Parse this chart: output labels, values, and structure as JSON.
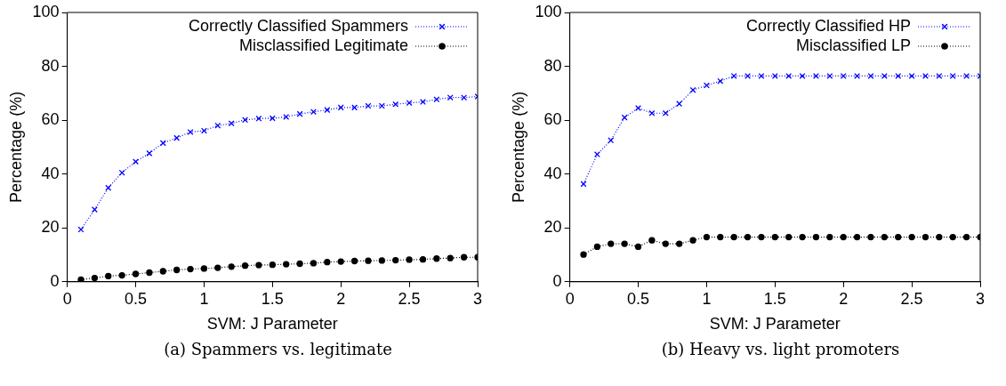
{
  "chart_data": [
    {
      "type": "line",
      "xlabel": "SVM: J Parameter",
      "ylabel": "Percentage (%)",
      "annotations": [
        "(a) Spammers vs. legitimate"
      ],
      "x": [
        0.1,
        0.2,
        0.3,
        0.4,
        0.5,
        0.6,
        0.7,
        0.8,
        0.9,
        1.0,
        1.1,
        1.2,
        1.3,
        1.4,
        1.5,
        1.6,
        1.7,
        1.8,
        1.9,
        2.0,
        2.1,
        2.2,
        2.3,
        2.4,
        2.5,
        2.6,
        2.7,
        2.8,
        2.9,
        3.0
      ],
      "xlim": [
        0,
        3
      ],
      "xticks": [
        0,
        0.5,
        1,
        1.5,
        2,
        2.5,
        3
      ],
      "ylim": [
        0,
        100
      ],
      "yticks": [
        0,
        20,
        40,
        60,
        80,
        100
      ],
      "grid": false,
      "legend": "top right",
      "line_style": "dotted",
      "series": [
        {
          "name": "Correctly Classified Spammers",
          "color": "#0000ff",
          "marker": "cross",
          "values": [
            19.4,
            26.8,
            34.9,
            40.5,
            44.6,
            47.7,
            51.5,
            53.4,
            55.6,
            56.1,
            58.0,
            58.8,
            60.1,
            60.6,
            60.7,
            61.2,
            62.3,
            63.1,
            63.8,
            64.7,
            64.7,
            65.3,
            65.3,
            65.9,
            66.4,
            66.8,
            67.7,
            68.4,
            68.4,
            68.8
          ]
        },
        {
          "name": "Misclassified Legitimate",
          "color": "#000000",
          "marker": "circle",
          "values": [
            0.8,
            1.4,
            2.1,
            2.4,
            2.9,
            3.4,
            3.9,
            4.4,
            4.7,
            4.9,
            5.2,
            5.6,
            6.0,
            6.2,
            6.3,
            6.5,
            6.7,
            6.9,
            7.3,
            7.5,
            7.7,
            7.8,
            7.9,
            8.0,
            8.2,
            8.3,
            8.6,
            8.8,
            9.1,
            9.1
          ]
        }
      ]
    },
    {
      "type": "line",
      "xlabel": "SVM: J Parameter",
      "ylabel": "Percentage (%)",
      "annotations": [
        "(b) Heavy vs. light promoters"
      ],
      "x": [
        0.1,
        0.2,
        0.3,
        0.4,
        0.5,
        0.6,
        0.7,
        0.8,
        0.9,
        1.0,
        1.1,
        1.2,
        1.3,
        1.4,
        1.5,
        1.6,
        1.7,
        1.8,
        1.9,
        2.0,
        2.1,
        2.2,
        2.3,
        2.4,
        2.5,
        2.6,
        2.7,
        2.8,
        2.9,
        3.0
      ],
      "xlim": [
        0,
        3
      ],
      "xticks": [
        0,
        0.5,
        1,
        1.5,
        2,
        2.5,
        3
      ],
      "ylim": [
        0,
        100
      ],
      "yticks": [
        0,
        20,
        40,
        60,
        80,
        100
      ],
      "grid": false,
      "legend": "top right",
      "line_style": "dotted",
      "series": [
        {
          "name": "Correctly Classified HP",
          "color": "#0000ff",
          "marker": "cross",
          "values": [
            36.3,
            47.3,
            52.5,
            61.0,
            64.5,
            62.6,
            62.6,
            66.1,
            71.2,
            72.9,
            74.5,
            76.4,
            76.4,
            76.4,
            76.4,
            76.4,
            76.4,
            76.4,
            76.4,
            76.4,
            76.4,
            76.4,
            76.4,
            76.4,
            76.4,
            76.4,
            76.4,
            76.4,
            76.4,
            76.4
          ]
        },
        {
          "name": "Misclassified LP",
          "color": "#000000",
          "marker": "circle",
          "values": [
            10.1,
            13.0,
            14.1,
            14.1,
            13.0,
            15.4,
            14.1,
            14.1,
            15.4,
            16.6,
            16.6,
            16.6,
            16.6,
            16.6,
            16.6,
            16.6,
            16.6,
            16.6,
            16.6,
            16.6,
            16.6,
            16.6,
            16.6,
            16.6,
            16.6,
            16.6,
            16.6,
            16.6,
            16.6,
            16.6
          ]
        }
      ]
    }
  ]
}
